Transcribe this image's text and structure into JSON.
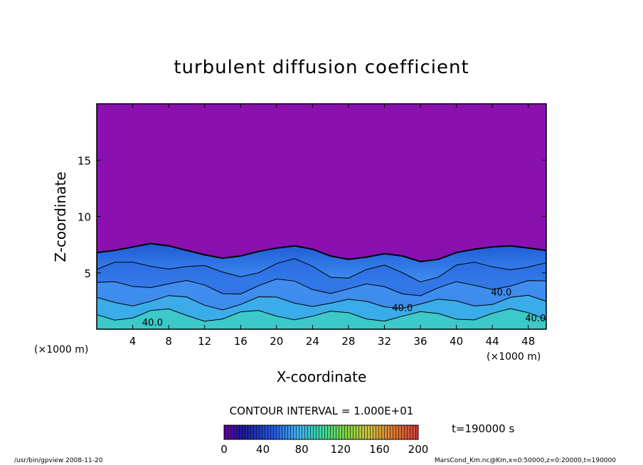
{
  "chart_data": {
    "type": "heatmap",
    "title": "turbulent diffusion coefficient",
    "xlabel": "X-coordinate",
    "ylabel": "Z-coordinate",
    "x_unit": "(×1000 m)",
    "y_unit": "(×1000 m)",
    "xlim": [
      0,
      50
    ],
    "ylim": [
      0,
      20
    ],
    "x_ticks": [
      4,
      8,
      12,
      16,
      20,
      24,
      28,
      32,
      36,
      40,
      44,
      48
    ],
    "y_ticks": [
      5,
      10,
      15
    ],
    "contour_interval": "CONTOUR INTERVAL = 1.000E+01",
    "contour_labels": [
      {
        "text": "40.0",
        "x": 6.2,
        "z": 0.3
      },
      {
        "text": "40.0",
        "x": 34.0,
        "z": 1.6
      },
      {
        "text": "40.0",
        "x": 45.0,
        "z": 3.0
      },
      {
        "text": "40.0",
        "x": 48.8,
        "z": 0.7
      }
    ],
    "colorbar": {
      "min": 0,
      "max": 200,
      "ticks": [
        0,
        40,
        80,
        120,
        160,
        200
      ]
    },
    "time_label": "t=190000 s",
    "turbulent_layer_top_km": [
      [
        0,
        6.8
      ],
      [
        2,
        7.0
      ],
      [
        4,
        7.3
      ],
      [
        6,
        7.6
      ],
      [
        8,
        7.4
      ],
      [
        10,
        7.0
      ],
      [
        12,
        6.6
      ],
      [
        14,
        6.3
      ],
      [
        16,
        6.5
      ],
      [
        18,
        6.9
      ],
      [
        20,
        7.2
      ],
      [
        22,
        7.4
      ],
      [
        24,
        7.1
      ],
      [
        26,
        6.5
      ],
      [
        28,
        6.2
      ],
      [
        30,
        6.4
      ],
      [
        32,
        6.7
      ],
      [
        34,
        6.5
      ],
      [
        36,
        6.0
      ],
      [
        38,
        6.2
      ],
      [
        40,
        6.8
      ],
      [
        42,
        7.1
      ],
      [
        44,
        7.3
      ],
      [
        46,
        7.4
      ],
      [
        48,
        7.2
      ],
      [
        50,
        7.0
      ]
    ],
    "background_value": 0
  },
  "footer": {
    "left": "/usr/bin/gpview   2008-11-20",
    "right": "MarsCond_Km.nc@Km,x=0:50000,z=0:20000,t=190000"
  }
}
